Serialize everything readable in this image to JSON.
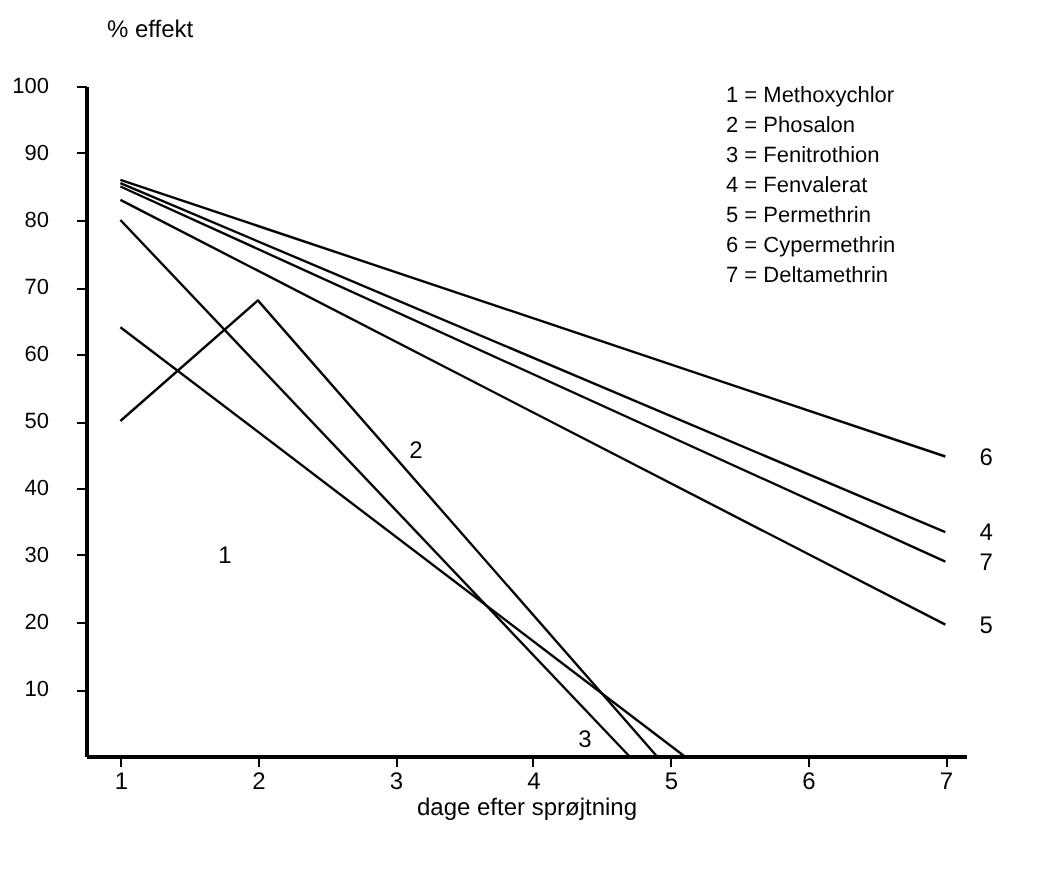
{
  "chart_data": {
    "type": "line",
    "xlabel": "dage efter sprøjtning",
    "ylabel": "% effekt",
    "xlim": [
      0.75,
      7.15
    ],
    "ylim": [
      0,
      100
    ],
    "xticks": [
      1,
      2,
      3,
      4,
      5,
      6,
      7
    ],
    "yticks": [
      10,
      20,
      30,
      40,
      50,
      60,
      70,
      80,
      90,
      100
    ],
    "grid": false,
    "series": [
      {
        "color": "#000000",
        "x": [
          1,
          5.1
        ],
        "values": [
          64,
          0
        ]
      },
      {
        "color": "#000000",
        "x": [
          1,
          2,
          4.9
        ],
        "values": [
          50,
          68,
          0
        ]
      },
      {
        "color": "#000000",
        "x": [
          1,
          4.7
        ],
        "values": [
          80,
          0
        ]
      },
      {
        "color": "#000000",
        "x": [
          1,
          7
        ],
        "values": [
          85.5,
          33.4
        ]
      },
      {
        "color": "#000000",
        "x": [
          1,
          7
        ],
        "values": [
          83,
          19.6
        ]
      },
      {
        "color": "#000000",
        "x": [
          1,
          7
        ],
        "values": [
          86,
          44.7
        ]
      },
      {
        "color": "#000000",
        "x": [
          1,
          7
        ],
        "values": [
          85,
          29
        ]
      }
    ],
    "annotations": [
      "1 = Methoxychlor",
      "2 = Phosalon",
      "3 = Fenitrothion",
      "4 = Fenvalerat",
      "5 = Permethrin",
      "6 = Cypermethrin",
      "7 = Deltamethrin",
      "1",
      "2",
      "3",
      "6",
      "4",
      "7",
      "5"
    ]
  }
}
